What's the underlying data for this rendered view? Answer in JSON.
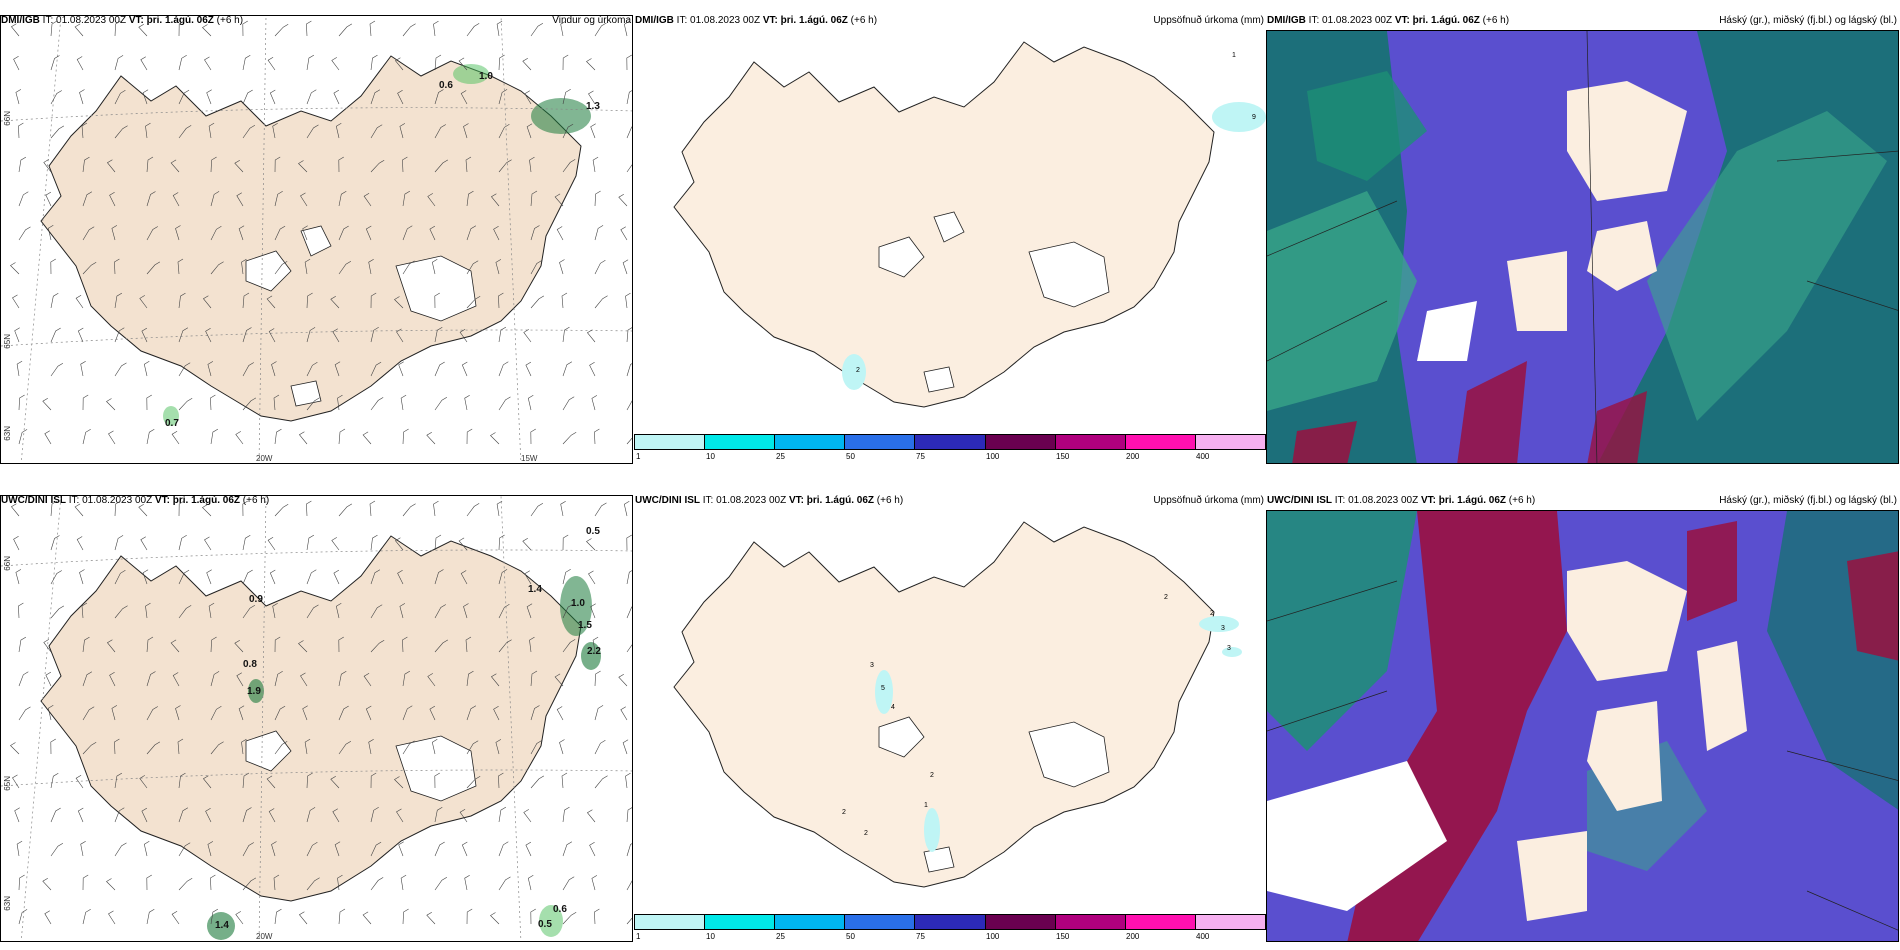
{
  "panels": [
    {
      "id": "p1",
      "model": "DMI/IGB",
      "it_label": "IT:",
      "it": "01.08.2023 00Z",
      "vt_label": "VT:",
      "vt": "þri. 1.ágú. 06Z",
      "lead": "(+6 h)",
      "product": "Vindur og úrkoma"
    },
    {
      "id": "p2",
      "model": "DMI/IGB",
      "it_label": "IT:",
      "it": "01.08.2023 00Z",
      "vt_label": "VT:",
      "vt": "þri. 1.ágú. 06Z",
      "lead": "(+6 h)",
      "product": "Uppsöfnuð úrkoma (mm)"
    },
    {
      "id": "p3",
      "model": "DMI/IGB",
      "it_label": "IT:",
      "it": "01.08.2023 00Z",
      "vt_label": "VT:",
      "vt": "þri. 1.ágú. 06Z",
      "lead": "(+6 h)",
      "product": "Háský (gr.), miðský (fj.bl.) og lágský (bl.)"
    },
    {
      "id": "p4",
      "model": "UWC/DINI ISL",
      "it_label": "IT:",
      "it": "01.08.2023 00Z",
      "vt_label": "VT:",
      "vt": "þri. 1.ágú. 06Z",
      "lead": "(+6 h)",
      "product": ""
    },
    {
      "id": "p5",
      "model": "UWC/DINI ISL",
      "it_label": "IT:",
      "it": "01.08.2023 00Z",
      "vt_label": "VT:",
      "vt": "þri. 1.ágú. 06Z",
      "lead": "(+6 h)",
      "product": "Uppsöfnuð úrkoma (mm)"
    },
    {
      "id": "p6",
      "model": "UWC/DINI ISL",
      "it_label": "IT:",
      "it": "01.08.2023 00Z",
      "vt_label": "VT:",
      "vt": "þri. 1.ágú. 06Z",
      "lead": "(+6 h)",
      "product": "Háský (gr.), miðský (fj.bl.) og lágský (bl.)"
    }
  ],
  "grid_labels": {
    "lat66": "66N",
    "lat65": "65N",
    "lat63": "63N",
    "lon20": "20W",
    "lon15": "15W"
  },
  "wind_values_top": [
    "0.6",
    "1.0",
    "1.3",
    "0.7"
  ],
  "wind_values_bottom": [
    "0.5",
    "0.9",
    "1.4",
    "1.0",
    "1.5",
    "2.2",
    "0.8",
    "1.9",
    "1.4",
    "0.6",
    "0.5"
  ],
  "precip_values_top": [
    "1",
    "9",
    "2"
  ],
  "precip_values_bottom": [
    "2",
    "2",
    "3",
    "3",
    "3",
    "5",
    "4",
    "2",
    "2",
    "1",
    "2"
  ],
  "colorbar": {
    "ticks": [
      "1",
      "10",
      "25",
      "50",
      "75",
      "100",
      "150",
      "200",
      "400"
    ],
    "colors": [
      "#bff5f5",
      "#00e8e8",
      "#00b6f0",
      "#2a6fe8",
      "#2c2ab8",
      "#6a0050",
      "#b0007e",
      "#ff10b0",
      "#f6b0f0"
    ]
  },
  "colors": {
    "land": "#fbeee0",
    "land_dmi": "#f3e2d0",
    "cloud_high_green": "#1d8f75",
    "cloud_mid_blue": "#5a4fcf",
    "cloud_low_red": "#9a1040",
    "sea_teal": "#1c6f7a"
  }
}
